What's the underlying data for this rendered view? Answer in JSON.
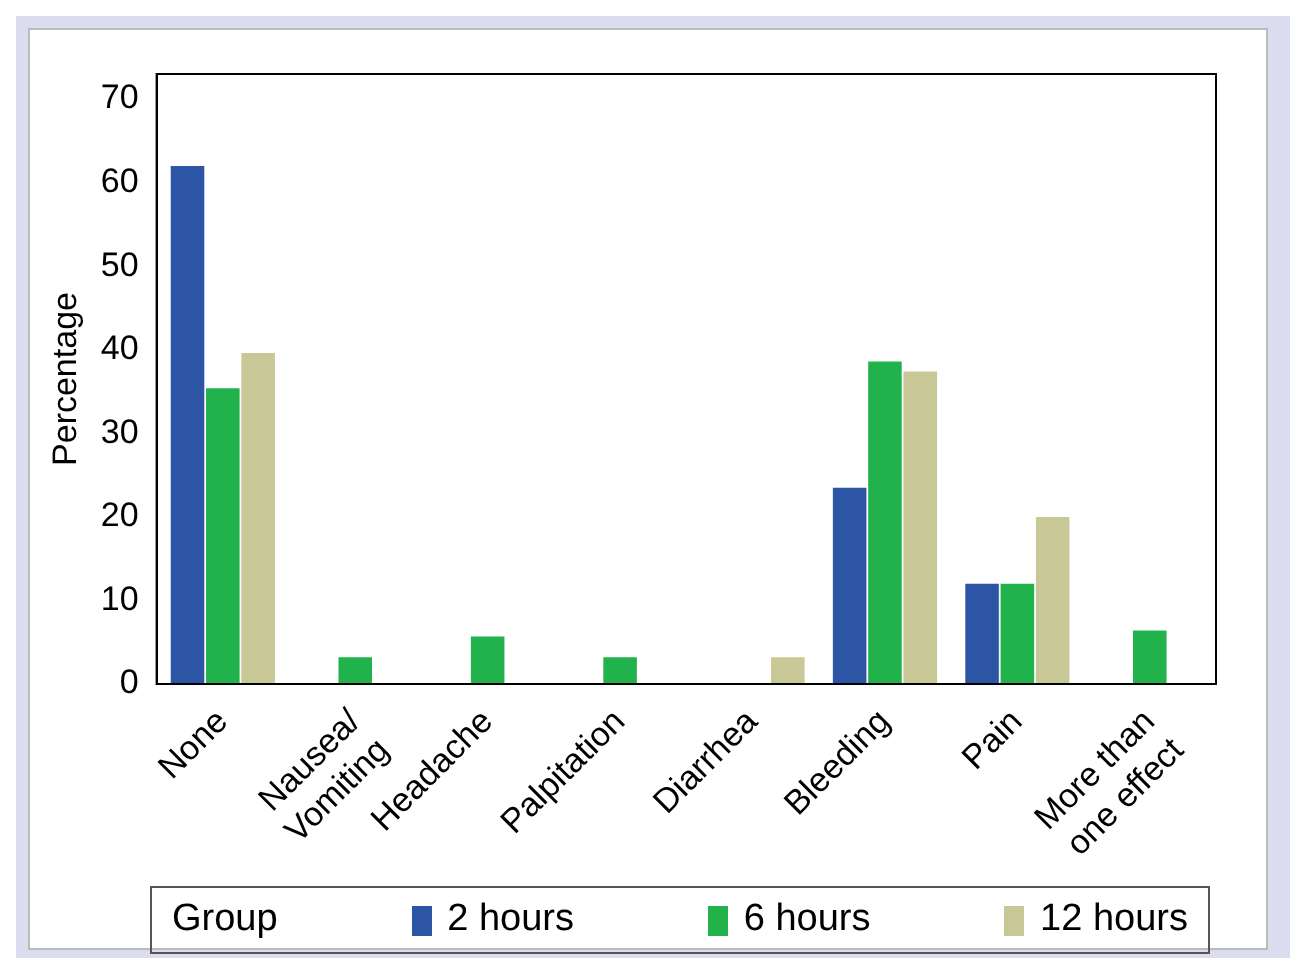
{
  "chart_data": {
    "type": "bar",
    "ylabel": "Percentage",
    "legend_title": "Group",
    "legend": "bottom",
    "grid": false,
    "categories": [
      "None",
      "Nausea/\nVomiting",
      "Headache",
      "Palpitation",
      "Diarrhea",
      "Bleeding",
      "Pain",
      "More than\none effect"
    ],
    "series": [
      {
        "name": "2 hours",
        "color": "#2d55a5",
        "values": [
          62,
          null,
          null,
          null,
          null,
          23.5,
          12,
          null
        ]
      },
      {
        "name": "6 hours",
        "color": "#22b24c",
        "values": [
          35.4,
          3.2,
          5.7,
          3.2,
          null,
          38.6,
          12,
          6.4
        ]
      },
      {
        "name": "12 hours",
        "color": "#c8c896",
        "values": [
          39.6,
          null,
          null,
          null,
          3.2,
          37.4,
          20,
          null
        ]
      }
    ],
    "ylim": [
      0,
      73
    ],
    "yticks": [
      0,
      10,
      20,
      30,
      40,
      50,
      60,
      70
    ]
  }
}
